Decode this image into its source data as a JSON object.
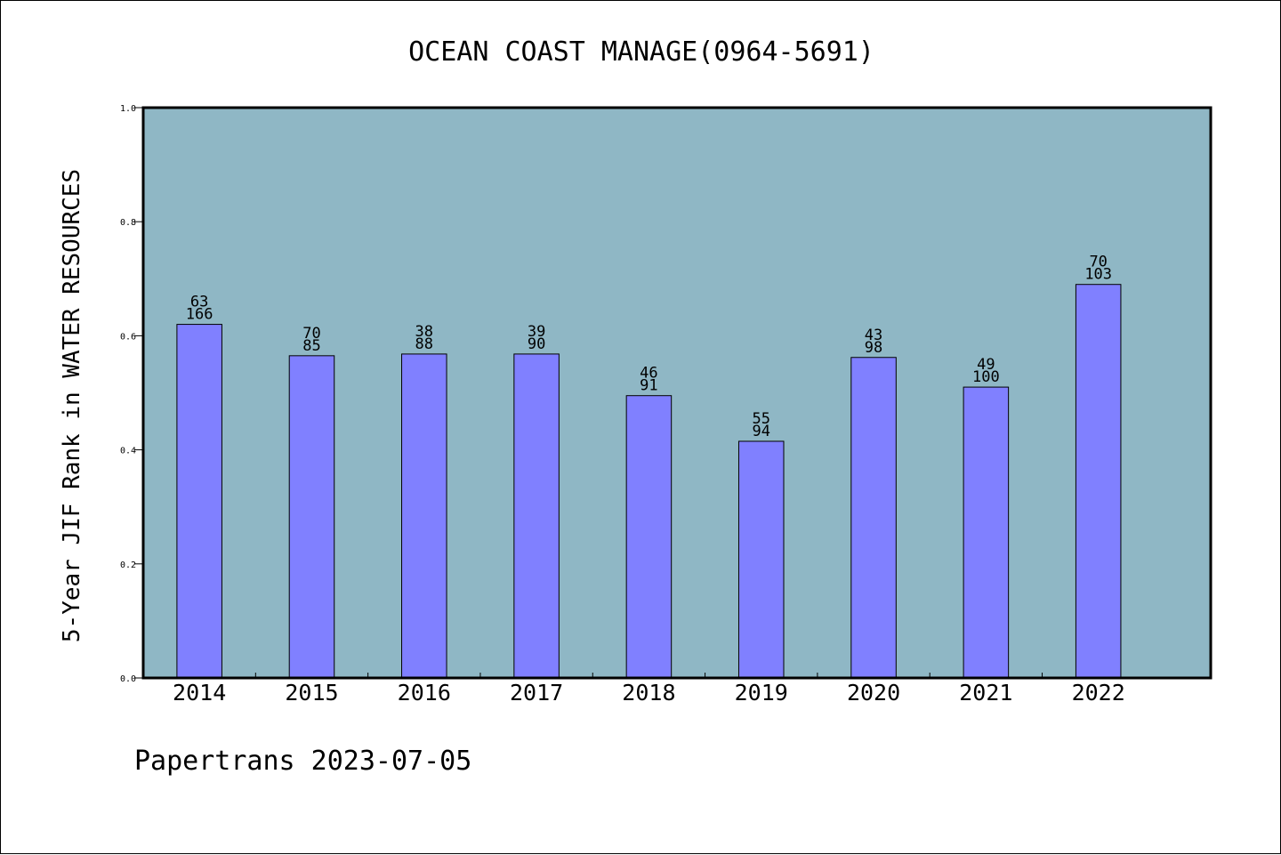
{
  "chart_data": {
    "type": "bar",
    "title": "OCEAN COAST MANAGE(0964-5691)",
    "xlabel": "",
    "ylabel": "5-Year JIF Rank in WATER RESOURCES",
    "ylim": [
      0.0,
      1.0
    ],
    "yticks": [
      "0.0",
      "0.2",
      "0.4",
      "0.6",
      "0.8",
      "1.0"
    ],
    "categories": [
      "2014",
      "2015",
      "2016",
      "2017",
      "2018",
      "2019",
      "2020",
      "2021",
      "2022"
    ],
    "values": [
      0.62,
      0.565,
      0.568,
      0.568,
      0.495,
      0.415,
      0.562,
      0.51,
      0.69
    ],
    "rank": [
      "63",
      "70",
      "38",
      "39",
      "46",
      "55",
      "43",
      "49",
      "70"
    ],
    "total": [
      "166",
      "85",
      "88",
      "90",
      "91",
      "94",
      "98",
      "100",
      "103"
    ],
    "grid": false,
    "colors": {
      "plot_background": "#8fb7c5",
      "bar": "#8080ff",
      "bar_edge": "#000000"
    }
  },
  "footer": "Papertrans 2023-07-05"
}
